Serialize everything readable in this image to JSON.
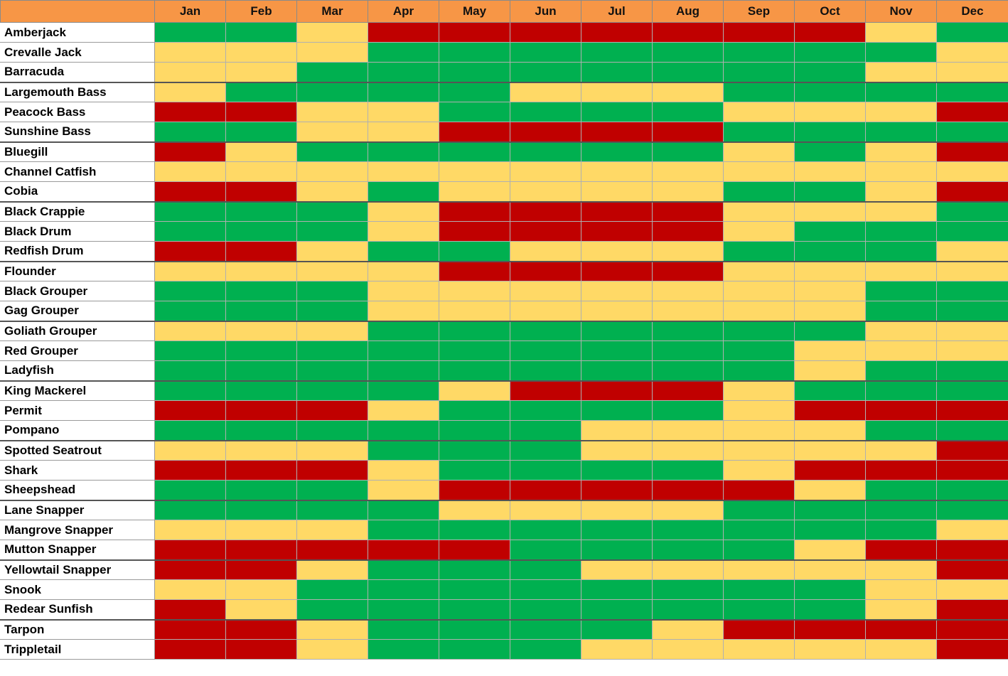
{
  "chart_data": {
    "type": "heatmap",
    "months": [
      "Jan",
      "Feb",
      "Mar",
      "Apr",
      "May",
      "Jun",
      "Jul",
      "Aug",
      "Sep",
      "Oct",
      "Nov",
      "Dec"
    ],
    "levels": {
      "G": "#00b050",
      "Y": "#ffd966",
      "R": "#c00000"
    },
    "rows": [
      {
        "name": "Amberjack",
        "values": [
          "G",
          "G",
          "Y",
          "R",
          "R",
          "R",
          "R",
          "R",
          "R",
          "R",
          "Y",
          "G"
        ]
      },
      {
        "name": "Crevalle Jack",
        "values": [
          "Y",
          "Y",
          "Y",
          "G",
          "G",
          "G",
          "G",
          "G",
          "G",
          "G",
          "G",
          "Y"
        ]
      },
      {
        "name": "Barracuda",
        "values": [
          "Y",
          "Y",
          "G",
          "G",
          "G",
          "G",
          "G",
          "G",
          "G",
          "G",
          "Y",
          "Y"
        ]
      },
      {
        "name": "Largemouth Bass",
        "values": [
          "Y",
          "G",
          "G",
          "G",
          "G",
          "Y",
          "Y",
          "Y",
          "G",
          "G",
          "G",
          "G"
        ]
      },
      {
        "name": "Peacock Bass",
        "values": [
          "R",
          "R",
          "Y",
          "Y",
          "G",
          "G",
          "G",
          "G",
          "Y",
          "Y",
          "Y",
          "R"
        ]
      },
      {
        "name": "Sunshine Bass",
        "values": [
          "G",
          "G",
          "Y",
          "Y",
          "R",
          "R",
          "R",
          "R",
          "G",
          "G",
          "G",
          "G"
        ]
      },
      {
        "name": "Bluegill",
        "values": [
          "R",
          "Y",
          "G",
          "G",
          "G",
          "G",
          "G",
          "G",
          "Y",
          "G",
          "Y",
          "R"
        ]
      },
      {
        "name": "Channel Catfish",
        "values": [
          "Y",
          "Y",
          "Y",
          "Y",
          "Y",
          "Y",
          "Y",
          "Y",
          "Y",
          "Y",
          "Y",
          "Y"
        ]
      },
      {
        "name": "Cobia",
        "values": [
          "R",
          "R",
          "Y",
          "G",
          "Y",
          "Y",
          "Y",
          "Y",
          "G",
          "G",
          "Y",
          "R"
        ]
      },
      {
        "name": "Black Crappie",
        "values": [
          "G",
          "G",
          "G",
          "Y",
          "R",
          "R",
          "R",
          "R",
          "Y",
          "Y",
          "Y",
          "G"
        ]
      },
      {
        "name": "Black Drum",
        "values": [
          "G",
          "G",
          "G",
          "Y",
          "R",
          "R",
          "R",
          "R",
          "Y",
          "G",
          "G",
          "G"
        ]
      },
      {
        "name": "Redfish Drum",
        "values": [
          "R",
          "R",
          "Y",
          "G",
          "G",
          "Y",
          "Y",
          "Y",
          "G",
          "G",
          "G",
          "Y"
        ]
      },
      {
        "name": "Flounder",
        "values": [
          "Y",
          "Y",
          "Y",
          "Y",
          "R",
          "R",
          "R",
          "R",
          "Y",
          "Y",
          "Y",
          "Y"
        ]
      },
      {
        "name": "Black Grouper",
        "values": [
          "G",
          "G",
          "G",
          "Y",
          "Y",
          "Y",
          "Y",
          "Y",
          "Y",
          "Y",
          "G",
          "G"
        ]
      },
      {
        "name": "Gag Grouper",
        "values": [
          "G",
          "G",
          "G",
          "Y",
          "Y",
          "Y",
          "Y",
          "Y",
          "Y",
          "Y",
          "G",
          "G"
        ]
      },
      {
        "name": "Goliath Grouper",
        "values": [
          "Y",
          "Y",
          "Y",
          "G",
          "G",
          "G",
          "G",
          "G",
          "G",
          "G",
          "Y",
          "Y"
        ]
      },
      {
        "name": "Red Grouper",
        "values": [
          "G",
          "G",
          "G",
          "G",
          "G",
          "G",
          "G",
          "G",
          "G",
          "Y",
          "Y",
          "Y"
        ]
      },
      {
        "name": "Ladyfish",
        "values": [
          "G",
          "G",
          "G",
          "G",
          "G",
          "G",
          "G",
          "G",
          "G",
          "Y",
          "G",
          "G"
        ]
      },
      {
        "name": "King Mackerel",
        "values": [
          "G",
          "G",
          "G",
          "G",
          "Y",
          "R",
          "R",
          "R",
          "Y",
          "G",
          "G",
          "G"
        ]
      },
      {
        "name": "Permit",
        "values": [
          "R",
          "R",
          "R",
          "Y",
          "G",
          "G",
          "G",
          "G",
          "Y",
          "R",
          "R",
          "R"
        ]
      },
      {
        "name": "Pompano",
        "values": [
          "G",
          "G",
          "G",
          "G",
          "G",
          "G",
          "Y",
          "Y",
          "Y",
          "Y",
          "G",
          "G"
        ]
      },
      {
        "name": "Spotted Seatrout",
        "values": [
          "Y",
          "Y",
          "Y",
          "G",
          "G",
          "G",
          "Y",
          "Y",
          "Y",
          "Y",
          "Y",
          "R"
        ]
      },
      {
        "name": "Shark",
        "values": [
          "R",
          "R",
          "R",
          "Y",
          "G",
          "G",
          "G",
          "G",
          "Y",
          "R",
          "R",
          "R"
        ]
      },
      {
        "name": "Sheepshead",
        "values": [
          "G",
          "G",
          "G",
          "Y",
          "R",
          "R",
          "R",
          "R",
          "R",
          "Y",
          "G",
          "G"
        ]
      },
      {
        "name": "Lane Snapper",
        "values": [
          "G",
          "G",
          "G",
          "G",
          "Y",
          "Y",
          "Y",
          "Y",
          "G",
          "G",
          "G",
          "G"
        ]
      },
      {
        "name": "Mangrove Snapper",
        "values": [
          "Y",
          "Y",
          "Y",
          "G",
          "G",
          "G",
          "G",
          "G",
          "G",
          "G",
          "G",
          "Y"
        ]
      },
      {
        "name": "Mutton Snapper",
        "values": [
          "R",
          "R",
          "R",
          "R",
          "R",
          "G",
          "G",
          "G",
          "G",
          "Y",
          "R",
          "R"
        ]
      },
      {
        "name": "Yellowtail Snapper",
        "values": [
          "R",
          "R",
          "Y",
          "G",
          "G",
          "G",
          "Y",
          "Y",
          "Y",
          "Y",
          "Y",
          "R"
        ]
      },
      {
        "name": "Snook",
        "values": [
          "Y",
          "Y",
          "G",
          "G",
          "G",
          "G",
          "G",
          "G",
          "G",
          "G",
          "Y",
          "Y"
        ]
      },
      {
        "name": "Redear Sunfish",
        "values": [
          "R",
          "Y",
          "G",
          "G",
          "G",
          "G",
          "G",
          "G",
          "G",
          "G",
          "Y",
          "R"
        ]
      },
      {
        "name": "Tarpon",
        "values": [
          "R",
          "R",
          "Y",
          "G",
          "G",
          "G",
          "G",
          "Y",
          "R",
          "R",
          "R",
          "R"
        ]
      },
      {
        "name": "Trippletail",
        "values": [
          "R",
          "R",
          "Y",
          "G",
          "G",
          "G",
          "Y",
          "Y",
          "Y",
          "Y",
          "Y",
          "R"
        ]
      }
    ]
  }
}
